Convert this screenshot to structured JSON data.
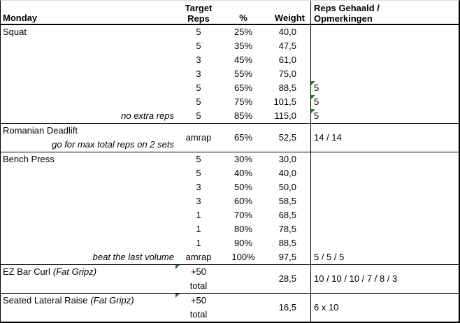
{
  "title_day": "Monday",
  "columns": {
    "target_l1": "Target",
    "target_l2": "Reps",
    "pct": "%",
    "weight": "Weight",
    "result_l1": "Reps Gehaald /",
    "result_l2": "Opmerkingen"
  },
  "colors": {
    "indicator_green": "#217a21",
    "grid_line": "#000000",
    "background": "#ffffff"
  },
  "sections": [
    {
      "name": "Squat",
      "rows": [
        {
          "reps": "5",
          "pct": "25%",
          "weight": "40,0",
          "result": "",
          "has_indicator": false
        },
        {
          "reps": "5",
          "pct": "35%",
          "weight": "47,5",
          "result": "",
          "has_indicator": false
        },
        {
          "reps": "3",
          "pct": "45%",
          "weight": "61,0",
          "result": "",
          "has_indicator": false
        },
        {
          "reps": "3",
          "pct": "55%",
          "weight": "75,0",
          "result": "",
          "has_indicator": false
        },
        {
          "reps": "5",
          "pct": "65%",
          "weight": "88,5",
          "result": "5",
          "has_indicator": true
        },
        {
          "reps": "5",
          "pct": "75%",
          "weight": "101,5",
          "result": "5",
          "has_indicator": true
        },
        {
          "note": "no extra reps",
          "reps": "5",
          "pct": "85%",
          "weight": "115,0",
          "result": "5",
          "has_indicator": true
        }
      ]
    },
    {
      "name": "Romanian Deadlift",
      "note": "go for max total reps on 2 sets",
      "reps": "amrap",
      "pct": "65%",
      "weight": "52,5",
      "result": "14 / 14"
    },
    {
      "name": "Bench Press",
      "rows": [
        {
          "reps": "5",
          "pct": "30%",
          "weight": "30,0",
          "result": ""
        },
        {
          "reps": "5",
          "pct": "40%",
          "weight": "40,0",
          "result": ""
        },
        {
          "reps": "3",
          "pct": "50%",
          "weight": "50,0",
          "result": ""
        },
        {
          "reps": "3",
          "pct": "60%",
          "weight": "58,5",
          "result": ""
        },
        {
          "reps": "1",
          "pct": "70%",
          "weight": "68,5",
          "result": ""
        },
        {
          "reps": "1",
          "pct": "80%",
          "weight": "78,5",
          "result": ""
        },
        {
          "reps": "1",
          "pct": "90%",
          "weight": "88,5",
          "result": ""
        },
        {
          "note": "beat the last volume",
          "reps": "amrap",
          "pct": "100%",
          "weight": "97,5",
          "result": "5 / 5 / 5"
        }
      ]
    },
    {
      "name": "EZ Bar Curl",
      "name_suffix": "(Fat Gripz)",
      "reps_l1": "+50",
      "reps_l2": "total",
      "weight": "28,5",
      "result": "10 / 10 / 10 / 7 / 8 / 3",
      "has_indicator": true
    },
    {
      "name": "Seated Lateral Raise",
      "name_suffix": "(Fat Gripz)",
      "reps_l1": "+50",
      "reps_l2": "total",
      "weight": "16,5",
      "result": "6 x 10",
      "has_indicator": true
    }
  ]
}
